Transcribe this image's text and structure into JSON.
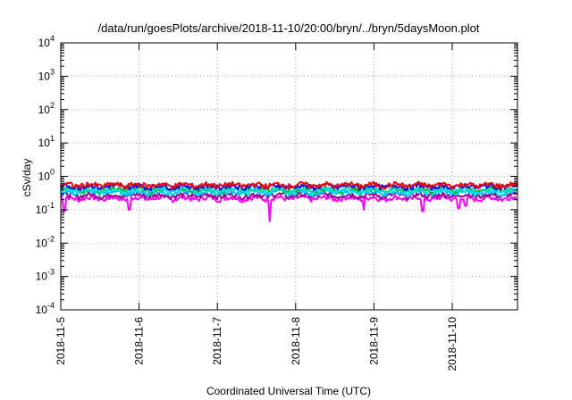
{
  "chart_data": {
    "type": "line",
    "title": "/data/run/goesPlots/archive/2018-11-10/20:00/bryn/../bryn/5daysMoon.plot",
    "xlabel": "Coordinated Universal Time (UTC)",
    "ylabel": "cSv/day",
    "yscale": "log",
    "ylim": [
      0.0001,
      10000
    ],
    "y_ticks": [
      {
        "base": "10",
        "exp": "-4",
        "value": 0.0001
      },
      {
        "base": "10",
        "exp": "-3",
        "value": 0.001
      },
      {
        "base": "10",
        "exp": "-2",
        "value": 0.01
      },
      {
        "base": "10",
        "exp": "-1",
        "value": 0.1
      },
      {
        "base": "10",
        "exp": "0",
        "value": 1
      },
      {
        "base": "10",
        "exp": "1",
        "value": 10
      },
      {
        "base": "10",
        "exp": "2",
        "value": 100
      },
      {
        "base": "10",
        "exp": "3",
        "value": 1000
      },
      {
        "base": "10",
        "exp": "4",
        "value": 10000
      }
    ],
    "xlim": [
      "2018-11-05T00:00",
      "2018-11-10T20:00"
    ],
    "x_ticks": [
      "2018-11-5",
      "2018-11-6",
      "2018-11-7",
      "2018-11-8",
      "2018-11-9",
      "2018-11-10"
    ],
    "grid": true,
    "series": [
      {
        "color": "#ff00ff",
        "level": 0.22,
        "spikes": [
          {
            "x": "2018-11-05T01:00",
            "y": 0.09
          },
          {
            "x": "2018-11-05T21:00",
            "y": 0.1
          },
          {
            "x": "2018-11-07T16:00",
            "y": 0.045
          },
          {
            "x": "2018-11-08T21:00",
            "y": 0.1
          },
          {
            "x": "2018-11-09T15:00",
            "y": 0.09
          },
          {
            "x": "2018-11-10T02:00",
            "y": 0.11
          },
          {
            "x": "2018-11-10T04:00",
            "y": 0.13
          }
        ]
      },
      {
        "color": "#a0008a",
        "level": 0.27
      },
      {
        "color": "#00c8ff",
        "level": 0.33
      },
      {
        "color": "#00b000",
        "level": 0.4
      },
      {
        "color": "#00e0e0",
        "level": 0.38
      },
      {
        "color": "#0000ff",
        "level": 0.5
      },
      {
        "color": "#ff0000",
        "level": 0.55
      }
    ]
  }
}
